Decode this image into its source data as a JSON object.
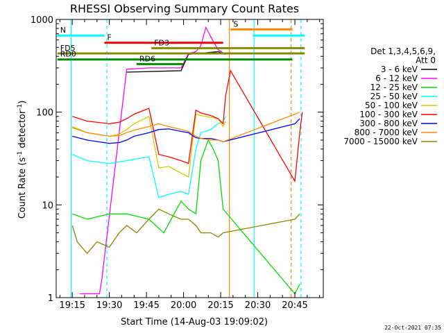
{
  "chart_data": {
    "type": "line",
    "title": "RHESSI Observing Summary Count Rates",
    "xlabel": "Start Time (14-Aug-03 19:09:02)",
    "ylabel_main": "Count Rate (s",
    "ylabel_sup1": "-1",
    "ylabel_mid": " detector",
    "ylabel_sup2": "-1",
    "ylabel_end": ")",
    "yscale": "log",
    "xlim": [
      "19:09",
      "20:48"
    ],
    "ylim": [
      1,
      1000
    ],
    "x_ticks": [
      {
        "label": "19:15",
        "t": 366
      },
      {
        "label": "19:30",
        "t": 381
      },
      {
        "label": "19:45",
        "t": 396
      },
      {
        "label": "20:00",
        "t": 411
      },
      {
        "label": "20:15",
        "t": 426
      },
      {
        "label": "20:30",
        "t": 441
      },
      {
        "label": "20:45",
        "t": 456
      }
    ],
    "y_ticks": [
      {
        "label": "1",
        "v": 1
      },
      {
        "label": "10",
        "v": 10
      },
      {
        "label": "100",
        "v": 100
      },
      {
        "label": "1000",
        "v": 1000
      }
    ],
    "legend_header": [
      "Det 1,3,4,5,6,9,",
      "Att 0"
    ],
    "series": [
      {
        "name": "3 - 6 keV",
        "color": "#000000",
        "x": [
          388,
          410,
          413,
          425,
          428
        ],
        "y": [
          270,
          280,
          420,
          450,
          420
        ]
      },
      {
        "name": "6 - 12 keV",
        "color": "#ff00ff",
        "x": [
          369,
          377,
          378,
          388,
          397,
          403,
          410,
          413,
          416,
          418,
          420,
          423,
          425,
          428
        ],
        "y": [
          1.1,
          1.1,
          1.6,
          290,
          300,
          300,
          300,
          430,
          450,
          520,
          820,
          580,
          470,
          420
        ]
      },
      {
        "name": "12 - 25 keV",
        "color": "#00dd00",
        "x": [
          366,
          372,
          381,
          388,
          397,
          403,
          410,
          413,
          416,
          418,
          421,
          423,
          425,
          427,
          456,
          458
        ],
        "y": [
          8,
          7,
          8,
          8,
          7,
          5,
          11,
          9,
          8,
          30,
          50,
          40,
          30,
          9,
          1.1,
          1.4
        ]
      },
      {
        "name": "25 - 50 keV",
        "color": "#00ffff",
        "x": [
          366,
          372,
          381,
          388,
          397,
          401,
          405,
          410,
          413,
          416,
          418,
          422,
          425,
          427,
          428
        ],
        "y": [
          35,
          30,
          28,
          30,
          33,
          12,
          13,
          14,
          13,
          40,
          60,
          65,
          75,
          80,
          90
        ]
      },
      {
        "name": "50 - 100 keV",
        "color": "#cccc00",
        "x": [
          366,
          372,
          381,
          385,
          388,
          391,
          397,
          401,
          405,
          410,
          413,
          416,
          418,
          422,
          425,
          427,
          428
        ],
        "y": [
          70,
          60,
          55,
          58,
          65,
          75,
          90,
          25,
          26,
          22,
          20,
          95,
          92,
          88,
          85,
          70,
          80
        ]
      },
      {
        "name": "100 - 300 keV",
        "color": "#ff0000",
        "x": [
          366,
          372,
          381,
          385,
          388,
          391,
          397,
          401,
          405,
          410,
          413,
          416,
          418,
          422,
          425,
          427,
          428,
          430,
          456,
          458,
          459
        ],
        "y": [
          90,
          80,
          75,
          78,
          85,
          95,
          110,
          35,
          33,
          30,
          28,
          105,
          98,
          92,
          85,
          75,
          150,
          280,
          18,
          60,
          100
        ]
      },
      {
        "name": "300 - 800 keV",
        "color": "#0000ff",
        "x": [
          366,
          372,
          381,
          385,
          388,
          391,
          397,
          401,
          405,
          410,
          413,
          416,
          418,
          422,
          425,
          427,
          456,
          458
        ],
        "y": [
          55,
          50,
          46,
          47,
          50,
          55,
          60,
          65,
          66,
          62,
          60,
          53,
          52,
          52,
          50,
          48,
          75,
          85
        ]
      },
      {
        "name": "800 - 7000 keV",
        "color": "#ff8800",
        "x": [
          366,
          372,
          381,
          385,
          388,
          391,
          397,
          401,
          405,
          410,
          413,
          416,
          418,
          422,
          425,
          427,
          456,
          458
        ],
        "y": [
          68,
          60,
          55,
          56,
          60,
          64,
          70,
          75,
          70,
          65,
          62,
          55,
          52,
          50,
          50,
          48,
          95,
          100
        ]
      },
      {
        "name": "7000 - 15000 keV",
        "color": "#888800",
        "x": [
          366,
          368,
          372,
          376,
          381,
          385,
          388,
          392,
          397,
          401,
          405,
          410,
          413,
          416,
          418,
          422,
          425,
          427,
          456,
          458
        ],
        "y": [
          6,
          4,
          3,
          4,
          3.5,
          5,
          6,
          5,
          7,
          9,
          8,
          7,
          7,
          6,
          5,
          5,
          4.5,
          5,
          7,
          8
        ]
      }
    ],
    "flags": [
      {
        "label": "N",
        "color": "#00ffff",
        "label_color": "#00ffff",
        "segments": [
          [
            360,
            379
          ],
          [
            439,
            460
          ]
        ],
        "level": 670
      },
      {
        "label": "S",
        "color": "#ff8800",
        "label_color": "#ff8800",
        "segments": [
          [
            430,
            455
          ]
        ],
        "level": 780
      },
      {
        "label": "F",
        "color": "#ff0000",
        "label_color": "#ff0000",
        "segments": [
          [
            379,
            427
          ]
        ],
        "level": 560
      },
      {
        "label": "FD3",
        "color": "#888800",
        "label_color": "#000000",
        "segments": [
          [
            398,
            460
          ]
        ],
        "level": 490
      },
      {
        "label": "FD5",
        "color": "#888800",
        "label_color": "#000000",
        "segments": [
          [
            360,
            460
          ]
        ],
        "level": 430
      },
      {
        "label": "RD0",
        "color": "#008800",
        "label_color": "#008800",
        "segments": [
          [
            360,
            455
          ]
        ],
        "level": 370
      },
      {
        "label": "RD6",
        "color": "#008800",
        "label_color": "#008800",
        "segments": [
          [
            392,
            411
          ]
        ],
        "level": 330
      }
    ],
    "vertical_markers": [
      {
        "t": 365.5,
        "color": "#00ffff",
        "style": "solid"
      },
      {
        "t": 380,
        "color": "#00ffff",
        "style": "dashed"
      },
      {
        "t": 429.5,
        "color": "#ff8800",
        "style": "solid"
      },
      {
        "t": 439.5,
        "color": "#00ffff",
        "style": "solid"
      },
      {
        "t": 454.5,
        "color": "#ff8800",
        "style": "dashed"
      },
      {
        "t": 458.5,
        "color": "#00ffff",
        "style": "dashed"
      }
    ],
    "grid": false,
    "legend_position": "right",
    "footer_date": "22-Oct-2021 07:35"
  }
}
